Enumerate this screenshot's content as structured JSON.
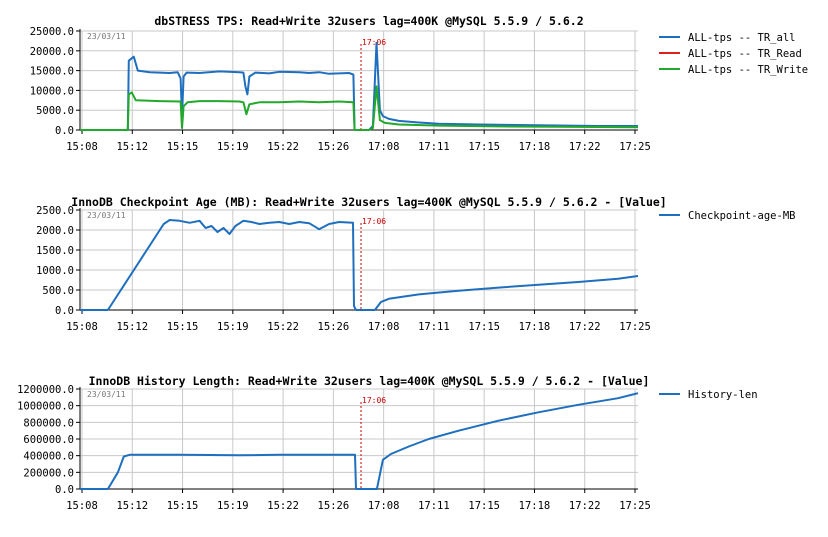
{
  "charts": [
    {
      "type": "line",
      "title": "dbSTRESS TPS: Read+Write 32users lag=400K @MySQL 5.5.9 / 5.6.2",
      "date_stamp": "23/03/11",
      "marker_label": "17:06",
      "ylim": [
        0,
        25000
      ],
      "y_ticks": [
        "0.0",
        "5000.0",
        "10000.0",
        "15000.0",
        "20000.0",
        "25000.0"
      ],
      "x_ticks": [
        "15:08",
        "15:12",
        "15:15",
        "15:19",
        "15:22",
        "15:26",
        "17:08",
        "17:11",
        "17:15",
        "17:18",
        "17:22",
        "17:25"
      ],
      "legend": [
        "ALL-tps -- TR_all",
        "ALL-tps -- TR_Read",
        "ALL-tps -- TR_Write"
      ],
      "colors": [
        "#1f6fbf",
        "#e0201a",
        "#22a82a"
      ],
      "series": [
        {
          "name": "ALL-tps -- TR_all",
          "points": [
            [
              0,
              0
            ],
            [
              2.4,
              0
            ],
            [
              2.45,
              17500
            ],
            [
              2.7,
              18500
            ],
            [
              2.9,
              15000
            ],
            [
              3.5,
              14600
            ],
            [
              4.5,
              14400
            ],
            [
              4.9,
              14600
            ],
            [
              5.05,
              13000
            ],
            [
              5.12,
              3500
            ],
            [
              5.2,
              13500
            ],
            [
              5.35,
              14500
            ],
            [
              6,
              14400
            ],
            [
              7,
              14800
            ],
            [
              8,
              14600
            ],
            [
              8.2,
              14500
            ],
            [
              8.3,
              11000
            ],
            [
              8.4,
              9000
            ],
            [
              8.5,
              13500
            ],
            [
              8.8,
              14500
            ],
            [
              9.5,
              14300
            ],
            [
              10,
              14700
            ],
            [
              11,
              14600
            ],
            [
              11.5,
              14400
            ],
            [
              12,
              14600
            ],
            [
              12.5,
              14200
            ],
            [
              13,
              14300
            ],
            [
              13.5,
              14400
            ],
            [
              13.72,
              14000
            ],
            [
              13.78,
              0
            ],
            [
              14.5,
              0
            ],
            [
              14.7,
              1000
            ],
            [
              14.88,
              22000
            ],
            [
              15.05,
              5000
            ],
            [
              15.2,
              3500
            ],
            [
              15.5,
              2800
            ],
            [
              16,
              2300
            ],
            [
              17,
              1900
            ],
            [
              18,
              1600
            ],
            [
              20,
              1400
            ],
            [
              23,
              1200
            ],
            [
              26,
              1000
            ],
            [
              28,
              1000
            ]
          ]
        },
        {
          "name": "ALL-tps -- TR_Read",
          "points": []
        },
        {
          "name": "ALL-tps -- TR_Write",
          "points": [
            [
              0,
              0
            ],
            [
              2.4,
              0
            ],
            [
              2.45,
              9000
            ],
            [
              2.6,
              9500
            ],
            [
              2.8,
              7500
            ],
            [
              4,
              7300
            ],
            [
              5.05,
              7200
            ],
            [
              5.12,
              500
            ],
            [
              5.2,
              6000
            ],
            [
              5.4,
              7000
            ],
            [
              6,
              7300
            ],
            [
              7,
              7300
            ],
            [
              8,
              7200
            ],
            [
              8.2,
              7000
            ],
            [
              8.35,
              4000
            ],
            [
              8.5,
              6500
            ],
            [
              9,
              7000
            ],
            [
              10,
              7000
            ],
            [
              11,
              7200
            ],
            [
              12,
              7000
            ],
            [
              13,
              7200
            ],
            [
              13.72,
              7000
            ],
            [
              13.78,
              0
            ],
            [
              14.5,
              0
            ],
            [
              14.7,
              500
            ],
            [
              14.88,
              11000
            ],
            [
              15.05,
              2500
            ],
            [
              15.3,
              1800
            ],
            [
              16,
              1400
            ],
            [
              18,
              1100
            ],
            [
              21,
              900
            ],
            [
              24,
              800
            ],
            [
              28,
              700
            ]
          ]
        }
      ]
    },
    {
      "type": "line",
      "title": "InnoDB Checkpoint Age (MB): Read+Write 32users lag=400K @MySQL 5.5.9 / 5.6.2 - [Value]",
      "date_stamp": "23/03/11",
      "marker_label": "17:06",
      "ylim": [
        0,
        2500
      ],
      "y_ticks": [
        "0.0",
        "500.0",
        "1000.0",
        "1500.0",
        "2000.0",
        "2500.0"
      ],
      "x_ticks": [
        "15:08",
        "15:12",
        "15:15",
        "15:19",
        "15:22",
        "15:26",
        "17:08",
        "17:11",
        "17:15",
        "17:18",
        "17:22",
        "17:25"
      ],
      "legend": [
        "Checkpoint-age-MB"
      ],
      "colors": [
        "#1f6fbf"
      ],
      "series": [
        {
          "name": "Checkpoint-age-MB",
          "points": [
            [
              0,
              0
            ],
            [
              1.4,
              0
            ],
            [
              4.2,
              2150
            ],
            [
              4.5,
              2250
            ],
            [
              5,
              2230
            ],
            [
              5.5,
              2180
            ],
            [
              6,
              2230
            ],
            [
              6.3,
              2050
            ],
            [
              6.6,
              2100
            ],
            [
              6.9,
              1950
            ],
            [
              7.2,
              2050
            ],
            [
              7.5,
              1900
            ],
            [
              7.8,
              2100
            ],
            [
              8.2,
              2230
            ],
            [
              8.6,
              2200
            ],
            [
              9,
              2150
            ],
            [
              9.5,
              2180
            ],
            [
              10,
              2200
            ],
            [
              10.5,
              2150
            ],
            [
              11,
              2200
            ],
            [
              11.5,
              2170
            ],
            [
              12,
              2020
            ],
            [
              12.5,
              2150
            ],
            [
              13,
              2200
            ],
            [
              13.7,
              2180
            ],
            [
              13.75,
              100
            ],
            [
              13.85,
              0
            ],
            [
              14.8,
              0
            ],
            [
              15.1,
              200
            ],
            [
              15.5,
              280
            ],
            [
              17,
              390
            ],
            [
              19,
              480
            ],
            [
              21,
              560
            ],
            [
              23,
              630
            ],
            [
              25,
              700
            ],
            [
              27,
              780
            ],
            [
              28,
              850
            ]
          ]
        }
      ]
    },
    {
      "type": "line",
      "title": "InnoDB History Length: Read+Write 32users lag=400K @MySQL 5.5.9 / 5.6.2 - [Value]",
      "date_stamp": "23/03/11",
      "marker_label": "17:06",
      "ylim": [
        0,
        1200000
      ],
      "y_ticks": [
        "0.0",
        "200000.0",
        "400000.0",
        "600000.0",
        "800000.0",
        "1000000.0",
        "1200000.0"
      ],
      "x_ticks": [
        "15:08",
        "15:12",
        "15:15",
        "15:19",
        "15:22",
        "15:26",
        "17:08",
        "17:11",
        "17:15",
        "17:18",
        "17:22",
        "17:25"
      ],
      "legend": [
        "History-len"
      ],
      "colors": [
        "#1f6fbf"
      ],
      "series": [
        {
          "name": "History-len",
          "points": [
            [
              0,
              0
            ],
            [
              1.4,
              0
            ],
            [
              1.9,
              200000
            ],
            [
              2.2,
              390000
            ],
            [
              2.5,
              410000
            ],
            [
              5,
              410000
            ],
            [
              8,
              405000
            ],
            [
              10,
              410000
            ],
            [
              13.8,
              410000
            ],
            [
              13.85,
              0
            ],
            [
              14.9,
              0
            ],
            [
              15.2,
              350000
            ],
            [
              15.6,
              420000
            ],
            [
              16.5,
              510000
            ],
            [
              17.5,
              600000
            ],
            [
              19,
              700000
            ],
            [
              21,
              820000
            ],
            [
              23,
              920000
            ],
            [
              25,
              1010000
            ],
            [
              27,
              1090000
            ],
            [
              28,
              1150000
            ]
          ]
        }
      ]
    }
  ]
}
